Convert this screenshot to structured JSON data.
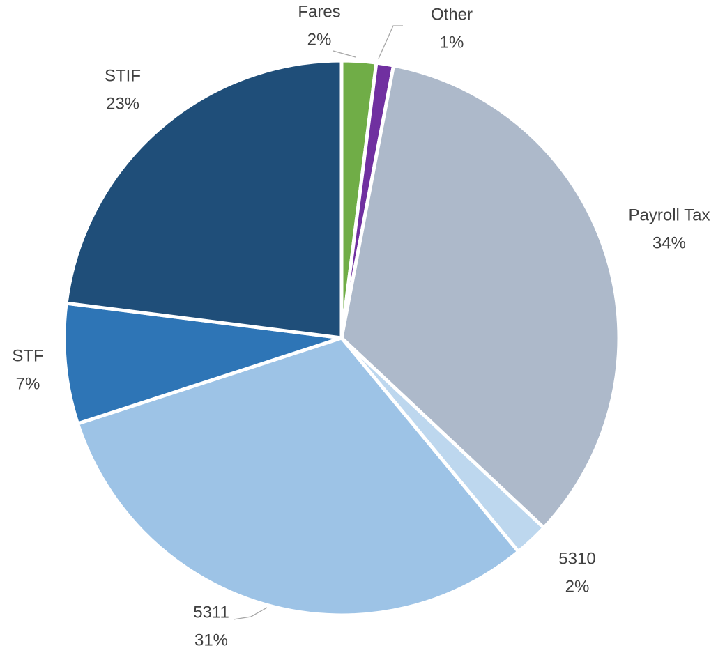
{
  "chart_data": {
    "type": "pie",
    "categories": [
      "Fares",
      "Other",
      "Payroll Tax",
      "5310",
      "5311",
      "STF",
      "STIF"
    ],
    "values": [
      2,
      1,
      34,
      2,
      31,
      7,
      23
    ],
    "value_labels": [
      "2%",
      "1%",
      "34%",
      "2%",
      "31%",
      "7%",
      "23%"
    ],
    "colors": [
      "#70ad47",
      "#7030a0",
      "#adb9ca",
      "#bdd7ee",
      "#9dc3e6",
      "#2e75b6",
      "#1f4e79"
    ]
  }
}
